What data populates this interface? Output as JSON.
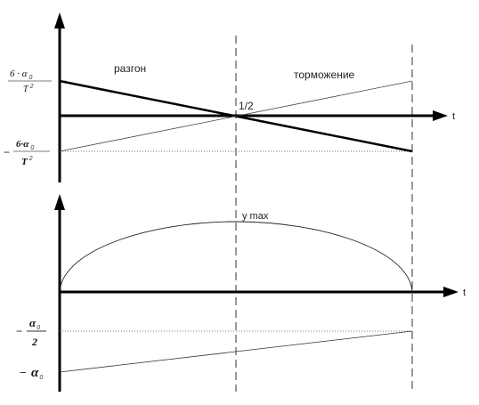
{
  "top_graph": {
    "label_left": "разгон",
    "label_right": "торможение",
    "midpoint_label": "1/2",
    "axis_label": "t",
    "pos_value": {
      "coef": "6 · α",
      "sub": "0",
      "denom": "T",
      "exp": "2"
    },
    "neg_value": {
      "sign": "−",
      "coef": "6·α",
      "sub": "0",
      "denom": "T",
      "exp": "2"
    }
  },
  "bottom_graph": {
    "peak_label": "y max",
    "axis_label": "t",
    "half_value": {
      "sign": "−",
      "symbol": "α",
      "sub": "0",
      "denom": "2"
    },
    "full_value": {
      "sign": "−",
      "symbol": "α",
      "sub": "0"
    }
  }
}
